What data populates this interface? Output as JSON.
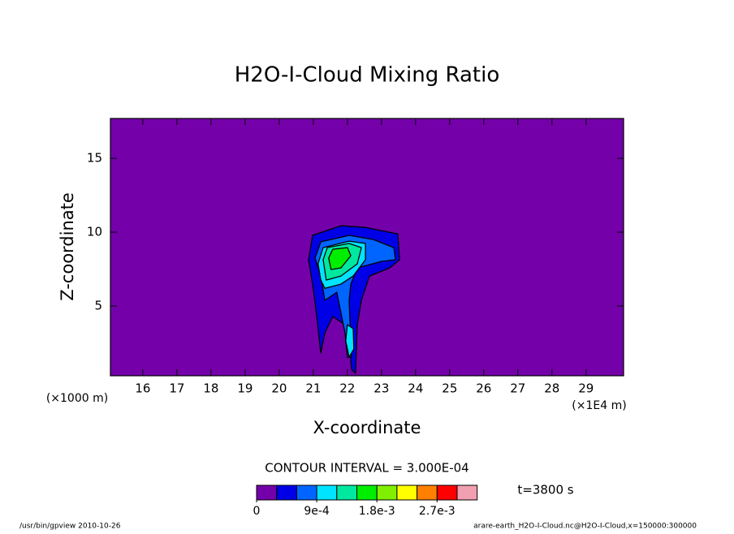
{
  "chart_data": {
    "type": "contour",
    "title": "H2O-I-Cloud Mixing Ratio",
    "xlabel": "X-coordinate",
    "ylabel": "Z-coordinate",
    "x_unit": "(×1E4 m)",
    "y_unit": "(×1000 m)",
    "contour_interval": "CONTOUR INTERVAL = 3.000E-04",
    "time_label": "t=3800 s",
    "footer_left": "/usr/bin/gpview  2010-10-26",
    "footer_right": "arare-earth_H2O-I-Cloud.nc@H2O-I-Cloud,x=150000:300000",
    "xlim": [
      15.05,
      30.1
    ],
    "ylim": [
      0.27,
      17.7
    ],
    "xticks": [
      16,
      17,
      18,
      19,
      20,
      21,
      22,
      23,
      24,
      25,
      26,
      27,
      28,
      29
    ],
    "yticks": [
      5,
      10,
      15
    ],
    "colorbar": {
      "levels": [
        0,
        0.0003,
        0.0006,
        0.0009,
        0.0012,
        0.0015,
        0.0018,
        0.0021,
        0.0024,
        0.0027,
        0.003
      ],
      "colors": [
        "#7400aa",
        "#0000e6",
        "#0064ff",
        "#00e4ff",
        "#00e8a0",
        "#00ee00",
        "#80f000",
        "#ffff00",
        "#ff8000",
        "#ff0000",
        "#f0a0b0"
      ],
      "ticks": [
        0,
        {
          "value": 0.0009,
          "label": "9e-4"
        },
        {
          "value": 0.0018,
          "label": "1.8e-3"
        },
        {
          "value": 0.0027,
          "label": "2.7e-3"
        }
      ]
    },
    "contours": [
      {
        "level": 0.0003,
        "x": [
          20.86,
          20.98,
          21.81,
          22.53,
          23.48,
          23.53,
          23.24,
          22.65,
          22.41,
          22.29,
          22.24,
          22.12,
          22.05,
          21.93,
          21.57,
          21.34,
          21.22,
          21.1,
          20.98
        ],
        "z": [
          8.13,
          9.78,
          10.43,
          10.32,
          9.88,
          8.13,
          7.58,
          7.03,
          5.38,
          3.73,
          0.43,
          0.71,
          2.63,
          3.73,
          4.28,
          3.18,
          1.81,
          4.28,
          6.48
        ]
      },
      {
        "level": 0.0006,
        "x": [
          21.05,
          21.22,
          22.05,
          22.76,
          23.36,
          23.41,
          23.0,
          22.29,
          22.1,
          22.05,
          22.12,
          22.0,
          21.93,
          21.69,
          21.34,
          21.22
        ],
        "z": [
          8.24,
          9.34,
          9.78,
          9.5,
          8.95,
          8.13,
          8.02,
          7.58,
          6.48,
          5.38,
          1.53,
          1.53,
          3.18,
          5.93,
          5.38,
          7.03
        ]
      },
      {
        "level": 0.0009,
        "x": [
          21.14,
          21.29,
          22.05,
          22.53,
          22.53,
          22.17,
          21.81,
          21.34,
          21.22
        ],
        "z": [
          7.85,
          8.95,
          9.39,
          9.23,
          8.13,
          7.03,
          6.48,
          6.2,
          6.75
        ]
      },
      {
        "level": 0.0009,
        "x": [
          22.0,
          22.17,
          22.19,
          22.05,
          21.95
        ],
        "z": [
          3.73,
          3.46,
          2.08,
          1.53,
          2.63
        ]
      },
      {
        "level": 0.0012,
        "x": [
          21.29,
          21.41,
          22.05,
          22.41,
          22.29,
          21.81,
          21.38
        ],
        "z": [
          8.13,
          8.95,
          9.23,
          8.95,
          7.85,
          7.03,
          6.75
        ]
      },
      {
        "level": 0.0015,
        "x": [
          21.45,
          21.57,
          22.0,
          22.1,
          21.81,
          21.52
        ],
        "z": [
          8.24,
          8.84,
          8.95,
          8.4,
          7.58,
          7.47
        ]
      }
    ]
  }
}
